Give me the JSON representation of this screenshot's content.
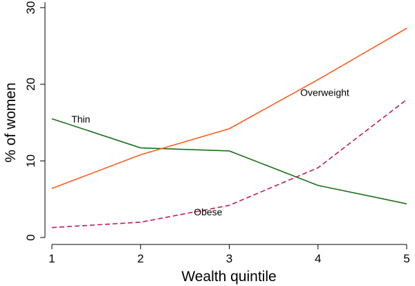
{
  "chart_data": {
    "type": "line",
    "xlabel": "Wealth quintile",
    "ylabel": "% of women",
    "x": [
      1,
      2,
      3,
      4,
      5
    ],
    "xlim": [
      1,
      5
    ],
    "ylim": [
      0,
      30
    ],
    "xticks": [
      1,
      2,
      3,
      4,
      5
    ],
    "yticks": [
      0,
      10,
      20,
      30
    ],
    "grid": false,
    "legend": "none",
    "series": [
      {
        "name": "Thin",
        "values": [
          15.5,
          11.7,
          11.3,
          6.8,
          4.4
        ],
        "color": "#1a6e1a",
        "dash": "solid"
      },
      {
        "name": "Overweight",
        "values": [
          6.4,
          10.8,
          14.2,
          20.6,
          27.3
        ],
        "color": "#ff5a1a",
        "dash": "solid"
      },
      {
        "name": "Obese",
        "values": [
          1.3,
          2.0,
          4.2,
          9.1,
          18.0
        ],
        "color": "#c2185b",
        "dash": "dashed"
      }
    ],
    "annotations": [
      {
        "text": "Thin",
        "x": 1.22,
        "y": 15.0
      },
      {
        "text": "Overweight",
        "x": 3.8,
        "y": 18.5
      },
      {
        "text": "Obese",
        "x": 2.6,
        "y": 2.9
      }
    ]
  }
}
